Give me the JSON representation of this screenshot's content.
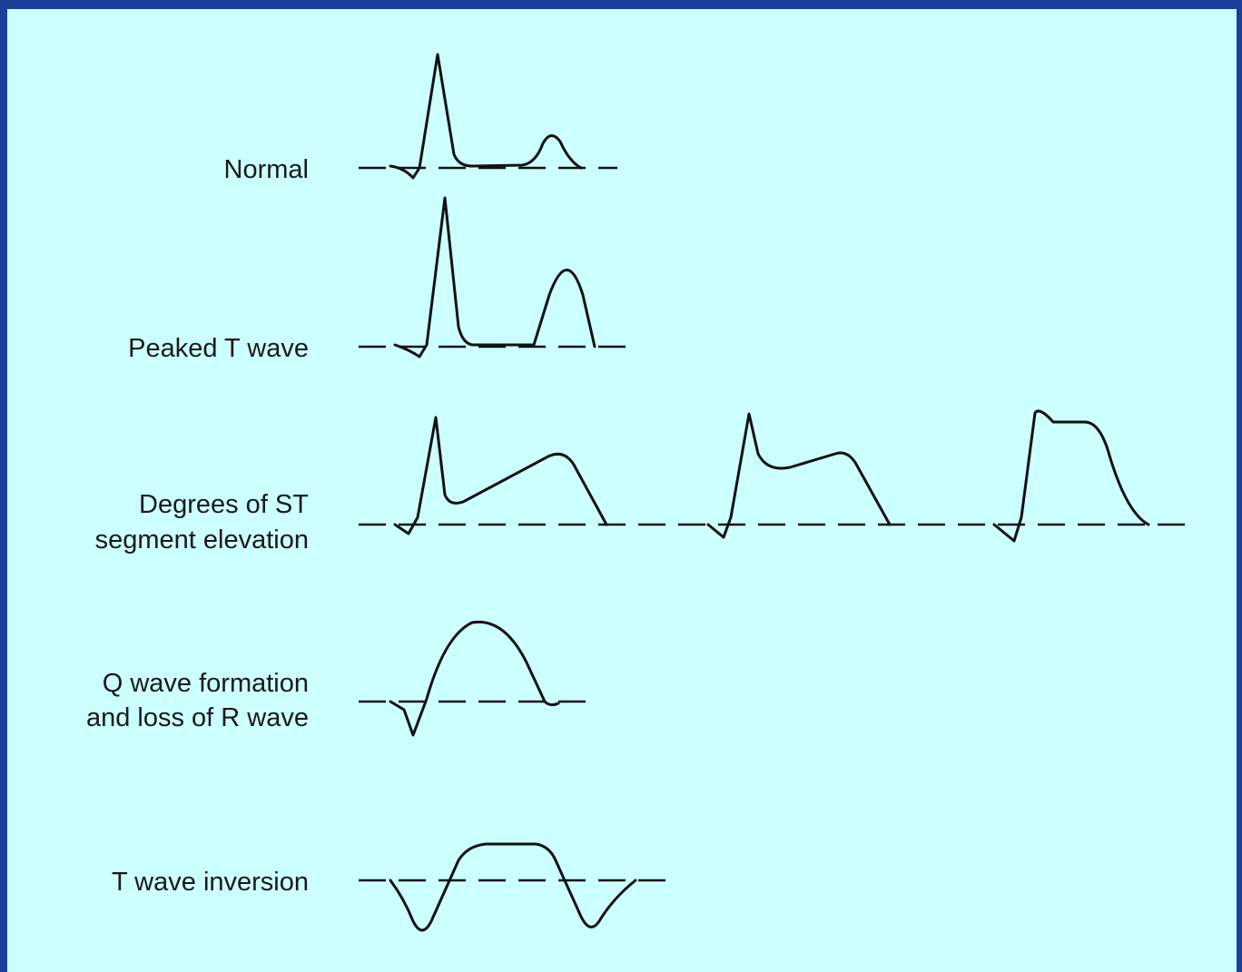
{
  "rows": [
    {
      "lines": [
        "Normal"
      ]
    },
    {
      "lines": [
        "Peaked T wave"
      ]
    },
    {
      "lines": [
        "Degrees of ST",
        "segment elevation"
      ]
    },
    {
      "lines": [
        "Q wave formation",
        "and loss of R wave"
      ]
    },
    {
      "lines": [
        "T wave inversion"
      ]
    }
  ]
}
